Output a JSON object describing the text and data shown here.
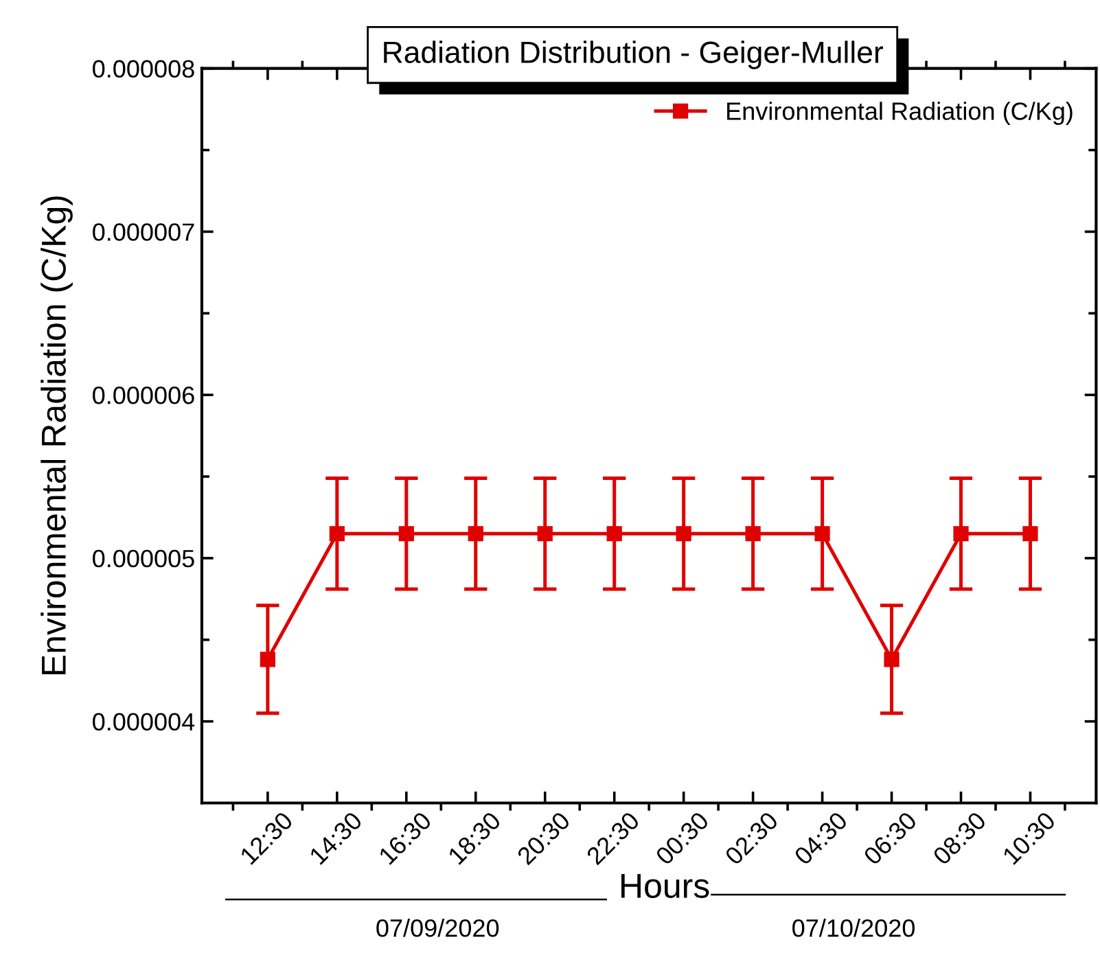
{
  "chart_data": {
    "type": "line",
    "title": "Radiation Distribution - Geiger-Muller",
    "xlabel": "Hours",
    "ylabel": "Environmental Radiation (C/Kg)",
    "categories": [
      "12:30",
      "14:30",
      "16:30",
      "18:30",
      "20:30",
      "22:30",
      "00:30",
      "02:30",
      "04:30",
      "06:30",
      "08:30",
      "10:30"
    ],
    "series": [
      {
        "name": "Environmental Radiation (C/Kg)",
        "color": "#e00000",
        "values": [
          4.38e-06,
          5.15e-06,
          5.15e-06,
          5.15e-06,
          5.15e-06,
          5.15e-06,
          5.15e-06,
          5.15e-06,
          5.15e-06,
          4.38e-06,
          5.15e-06,
          5.15e-06
        ],
        "errors": [
          3.3e-07,
          3.4e-07,
          3.4e-07,
          3.4e-07,
          3.4e-07,
          3.4e-07,
          3.4e-07,
          3.4e-07,
          3.4e-07,
          3.3e-07,
          3.4e-07,
          3.4e-07
        ]
      }
    ],
    "ylim": [
      3.5e-06,
      8e-06
    ],
    "yticks": [
      {
        "value": 4e-06,
        "label": "0.000004"
      },
      {
        "value": 5e-06,
        "label": "0.000005"
      },
      {
        "value": 6e-06,
        "label": "0.000006"
      },
      {
        "value": 7e-06,
        "label": "0.000007"
      },
      {
        "value": 8e-06,
        "label": "0.000008"
      }
    ],
    "annotations": [
      "07/09/2020",
      "07/10/2020"
    ],
    "legend": "top right",
    "marker": "square",
    "line_style": "solid",
    "grid": false
  }
}
